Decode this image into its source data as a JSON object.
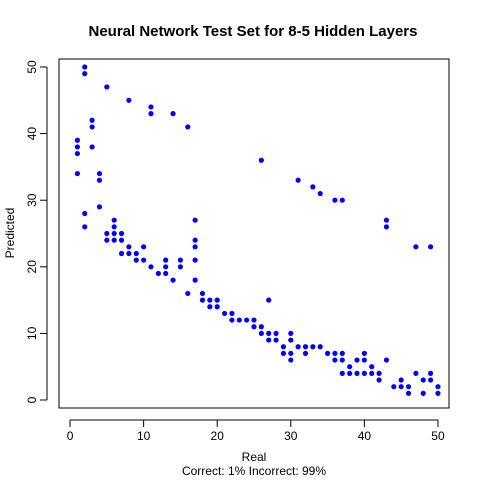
{
  "chart_data": {
    "type": "scatter",
    "title": "Neural Network Test Set for 8-5 Hidden Layers",
    "xlabel": "Real",
    "ylabel": "Predicted",
    "subtitle": "Correct: 1% Incorrect: 99%",
    "xlim": [
      -1.5,
      51.5
    ],
    "ylim": [
      -1.2,
      51.2
    ],
    "xticks": [
      0,
      10,
      20,
      30,
      40,
      50
    ],
    "yticks": [
      0,
      10,
      20,
      30,
      40,
      50
    ],
    "grid": false,
    "point_color": "#0000ff",
    "points": [
      [
        1,
        39
      ],
      [
        1,
        38
      ],
      [
        1,
        37
      ],
      [
        1,
        34
      ],
      [
        2,
        50
      ],
      [
        2,
        49
      ],
      [
        2,
        28
      ],
      [
        2,
        26
      ],
      [
        3,
        42
      ],
      [
        3,
        41
      ],
      [
        3,
        38
      ],
      [
        4,
        34
      ],
      [
        4,
        33
      ],
      [
        4,
        29
      ],
      [
        5,
        47
      ],
      [
        5,
        25
      ],
      [
        5,
        24
      ],
      [
        6,
        27
      ],
      [
        6,
        26
      ],
      [
        6,
        25
      ],
      [
        6,
        24
      ],
      [
        7,
        25
      ],
      [
        7,
        24
      ],
      [
        7,
        22
      ],
      [
        8,
        45
      ],
      [
        8,
        23
      ],
      [
        8,
        22
      ],
      [
        9,
        22
      ],
      [
        9,
        21
      ],
      [
        10,
        23
      ],
      [
        10,
        21
      ],
      [
        11,
        44
      ],
      [
        11,
        43
      ],
      [
        11,
        20
      ],
      [
        12,
        19
      ],
      [
        13,
        21
      ],
      [
        13,
        20
      ],
      [
        13,
        19
      ],
      [
        14,
        43
      ],
      [
        14,
        18
      ],
      [
        15,
        21
      ],
      [
        15,
        20
      ],
      [
        16,
        41
      ],
      [
        16,
        16
      ],
      [
        17,
        27
      ],
      [
        17,
        24
      ],
      [
        17,
        23
      ],
      [
        17,
        21
      ],
      [
        17,
        18
      ],
      [
        18,
        16
      ],
      [
        18,
        15
      ],
      [
        19,
        15
      ],
      [
        19,
        14
      ],
      [
        20,
        15
      ],
      [
        20,
        14
      ],
      [
        21,
        13
      ],
      [
        22,
        13
      ],
      [
        22,
        12
      ],
      [
        23,
        12
      ],
      [
        24,
        12
      ],
      [
        25,
        12
      ],
      [
        25,
        11
      ],
      [
        26,
        36
      ],
      [
        26,
        11
      ],
      [
        26,
        10
      ],
      [
        27,
        15
      ],
      [
        27,
        10
      ],
      [
        27,
        9
      ],
      [
        28,
        10
      ],
      [
        28,
        9
      ],
      [
        29,
        8
      ],
      [
        29,
        7
      ],
      [
        30,
        10
      ],
      [
        30,
        9
      ],
      [
        30,
        7
      ],
      [
        30,
        6
      ],
      [
        31,
        33
      ],
      [
        31,
        8
      ],
      [
        32,
        8
      ],
      [
        32,
        7
      ],
      [
        33,
        32
      ],
      [
        33,
        8
      ],
      [
        34,
        31
      ],
      [
        34,
        8
      ],
      [
        35,
        7
      ],
      [
        36,
        30
      ],
      [
        36,
        7
      ],
      [
        36,
        6
      ],
      [
        37,
        30
      ],
      [
        37,
        7
      ],
      [
        37,
        6
      ],
      [
        37,
        4
      ],
      [
        38,
        5
      ],
      [
        38,
        4
      ],
      [
        39,
        6
      ],
      [
        39,
        4
      ],
      [
        40,
        7
      ],
      [
        40,
        6
      ],
      [
        40,
        4
      ],
      [
        41,
        5
      ],
      [
        41,
        4
      ],
      [
        42,
        4
      ],
      [
        42,
        3
      ],
      [
        43,
        27
      ],
      [
        43,
        26
      ],
      [
        43,
        6
      ],
      [
        44,
        2
      ],
      [
        45,
        3
      ],
      [
        45,
        2
      ],
      [
        46,
        2
      ],
      [
        46,
        1
      ],
      [
        47,
        23
      ],
      [
        47,
        4
      ],
      [
        48,
        3
      ],
      [
        48,
        1
      ],
      [
        49,
        23
      ],
      [
        49,
        4
      ],
      [
        49,
        3
      ],
      [
        50,
        2
      ],
      [
        50,
        1
      ]
    ]
  }
}
